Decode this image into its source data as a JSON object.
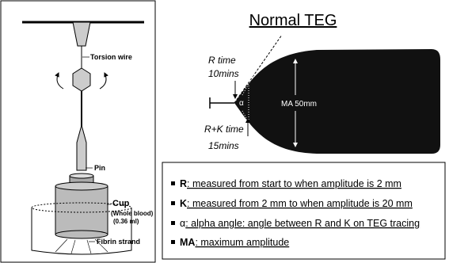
{
  "apparatus": {
    "labels": {
      "torsion_wire": "Torsion wire",
      "pin": "Pin",
      "cup": "Cup",
      "cup_detail_1": "(Whole blood)",
      "cup_detail_2": "(0.36 ml)",
      "fibrin_strand": "Fibrin strand"
    }
  },
  "teg": {
    "title": "Normal TEG",
    "r_time_label": "R time",
    "r_time_value": "10mins",
    "alpha": "α",
    "ma": "MA 50mm",
    "rk_time_label": "R+K time",
    "rk_time_value": "15mins"
  },
  "definitions": [
    {
      "term": "R",
      "text": ": measured from start to when amplitude is 2 mm"
    },
    {
      "term": "K",
      "text": ": measured from 2 mm to when amplitude is 20 mm"
    },
    {
      "term": "α",
      "text": ": alpha angle: angle between R and K on TEG tracing"
    },
    {
      "term": "MA",
      "text": ": maximum amplitude"
    }
  ]
}
